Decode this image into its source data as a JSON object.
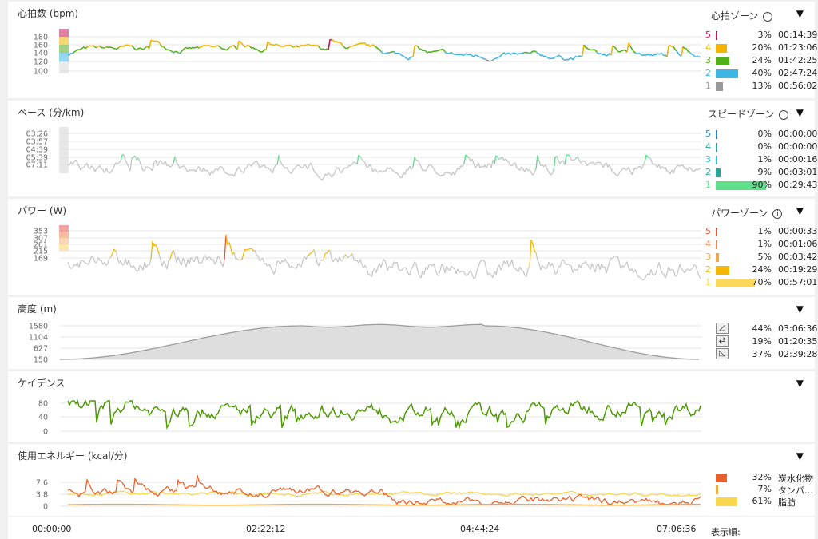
{
  "heart": {
    "title": "心拍数 (bpm)",
    "zone_title": "心拍ゾーン",
    "info": "i",
    "caret": "▼",
    "ticks": [
      "180",
      "160",
      "140",
      "120",
      "100"
    ],
    "zones": [
      {
        "n": "5",
        "pct": "3%",
        "time": "00:14:39",
        "color": "#c2185b",
        "frac": 0.03
      },
      {
        "n": "4",
        "pct": "20%",
        "time": "01:23:06",
        "color": "#f5b400",
        "frac": 0.2
      },
      {
        "n": "3",
        "pct": "24%",
        "time": "01:42:25",
        "color": "#52b11a",
        "frac": 0.24
      },
      {
        "n": "2",
        "pct": "40%",
        "time": "02:47:24",
        "color": "#3bb7e6",
        "frac": 0.4
      },
      {
        "n": "1",
        "pct": "13%",
        "time": "00:56:02",
        "color": "#999999",
        "frac": 0.13
      }
    ]
  },
  "pace": {
    "title": "ペース (分/km)",
    "zone_title": "スピードゾーン",
    "info": "i",
    "caret": "▼",
    "ticks": [
      "03:26",
      "03:57",
      "04:39",
      "05:39",
      "07:11"
    ],
    "zones": [
      {
        "n": "5",
        "pct": "0%",
        "time": "00:00:00",
        "color": "#1e88c8",
        "frac": 0.0
      },
      {
        "n": "4",
        "pct": "0%",
        "time": "00:00:00",
        "color": "#26a69a",
        "frac": 0.0
      },
      {
        "n": "3",
        "pct": "1%",
        "time": "00:00:16",
        "color": "#26c6da",
        "frac": 0.01
      },
      {
        "n": "2",
        "pct": "9%",
        "time": "00:03:01",
        "color": "#26a69a",
        "frac": 0.09
      },
      {
        "n": "1",
        "pct": "90%",
        "time": "00:29:43",
        "color": "#5ee08a",
        "frac": 0.9
      }
    ]
  },
  "power": {
    "title": "パワー (W)",
    "zone_title": "パワーゾーン",
    "info": "i",
    "caret": "▼",
    "ticks": [
      "353",
      "307",
      "261",
      "215",
      "169"
    ],
    "zones": [
      {
        "n": "5",
        "pct": "1%",
        "time": "00:00:33",
        "color": "#e6552e",
        "frac": 0.01
      },
      {
        "n": "4",
        "pct": "1%",
        "time": "00:01:06",
        "color": "#f08a4b",
        "frac": 0.01
      },
      {
        "n": "3",
        "pct": "5%",
        "time": "00:03:42",
        "color": "#f4a640",
        "frac": 0.05
      },
      {
        "n": "2",
        "pct": "24%",
        "time": "00:19:29",
        "color": "#f5b800",
        "frac": 0.24
      },
      {
        "n": "1",
        "pct": "70%",
        "time": "00:57:01",
        "color": "#fbd85a",
        "frac": 0.7
      }
    ]
  },
  "altitude": {
    "title": "高度 (m)",
    "caret": "▼",
    "ticks": [
      "1580",
      "1104",
      "627",
      "150"
    ],
    "ylim": [
      150,
      1580
    ],
    "stats": [
      {
        "icon": "climb-icon",
        "pct": "44%",
        "time": "03:06:36"
      },
      {
        "icon": "flat-icon",
        "pct": "19%",
        "time": "01:20:35"
      },
      {
        "icon": "descent-icon",
        "pct": "37%",
        "time": "02:39:28"
      }
    ]
  },
  "cadence": {
    "title": "ケイデンス",
    "caret": "▼",
    "ticks": [
      "80",
      "40",
      "0"
    ],
    "color": "#4e9a06"
  },
  "energy": {
    "title": "使用エネルギー (kcal/分)",
    "caret": "▼",
    "ticks": [
      "7.6",
      "3.8",
      "0"
    ],
    "items": [
      {
        "pct": "32%",
        "label": "炭水化物",
        "color": "#e8612c",
        "frac": 0.32
      },
      {
        "pct": "7%",
        "label": "タンパ…",
        "color": "#f2a93b",
        "frac": 0.07
      },
      {
        "pct": "61%",
        "label": "脂肪",
        "color": "#f8d74a",
        "frac": 0.61
      }
    ]
  },
  "timeline": {
    "labels": [
      "00:00:00",
      "02:22:12",
      "04:44:24",
      "07:06:36"
    ],
    "sort_label": "表示順:"
  }
}
